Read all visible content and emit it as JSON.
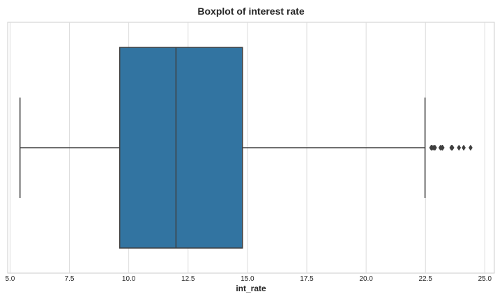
{
  "chart_data": {
    "type": "boxplot",
    "title": "Boxplot of interest rate",
    "xlabel": "int_rate",
    "ylabel": "",
    "orientation": "horizontal",
    "xlim": [
      4.9,
      25.4
    ],
    "xticks": [
      5.0,
      7.5,
      10.0,
      12.5,
      15.0,
      17.5,
      20.0,
      22.5,
      25.0
    ],
    "xtick_labels": [
      "5.0",
      "7.5",
      "10.0",
      "12.5",
      "15.0",
      "17.5",
      "20.0",
      "22.5",
      "25.0"
    ],
    "grid": true,
    "box": {
      "whisker_low": 5.42,
      "q1": 9.62,
      "median": 11.99,
      "q3": 14.79,
      "whisker_high": 22.48,
      "outliers": [
        22.74,
        22.78,
        22.85,
        22.9,
        23.13,
        23.2,
        23.22,
        23.59,
        23.63,
        23.91,
        24.11,
        24.4
      ]
    },
    "colors": {
      "box_fill": "#3274a1",
      "line": "#3f3f3f",
      "grid": "#dcdcdc",
      "frame": "#cccccc"
    }
  }
}
